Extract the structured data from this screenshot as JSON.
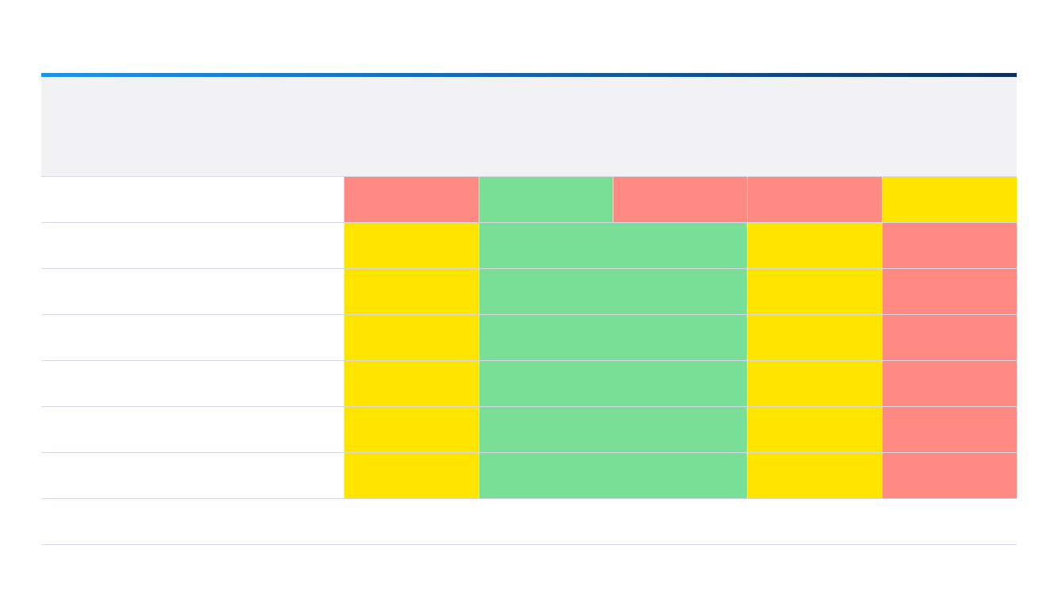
{
  "matrix": {
    "columns": [
      "",
      "",
      "",
      "",
      "",
      ""
    ],
    "colors": {
      "red": "#ff8a84",
      "green": "#79df97",
      "yellow": "#ffe400"
    },
    "rows": [
      {
        "label": "",
        "cells": [
          "red",
          "green",
          "red",
          "red",
          "yellow"
        ]
      },
      {
        "label": "",
        "cells": [
          "yellow",
          "green",
          "green",
          "yellow",
          "red"
        ]
      },
      {
        "label": "",
        "cells": [
          "yellow",
          "green",
          "green",
          "yellow",
          "red"
        ]
      },
      {
        "label": "",
        "cells": [
          "yellow",
          "green",
          "green",
          "yellow",
          "red"
        ]
      },
      {
        "label": "",
        "cells": [
          "yellow",
          "green",
          "green",
          "yellow",
          "red"
        ]
      },
      {
        "label": "",
        "cells": [
          "yellow",
          "green",
          "green",
          "yellow",
          "red"
        ]
      },
      {
        "label": "",
        "cells": [
          "yellow",
          "green",
          "green",
          "yellow",
          "red"
        ]
      },
      {
        "label": "",
        "cells": [
          "empty",
          "empty",
          "empty",
          "empty",
          "empty"
        ]
      }
    ]
  }
}
